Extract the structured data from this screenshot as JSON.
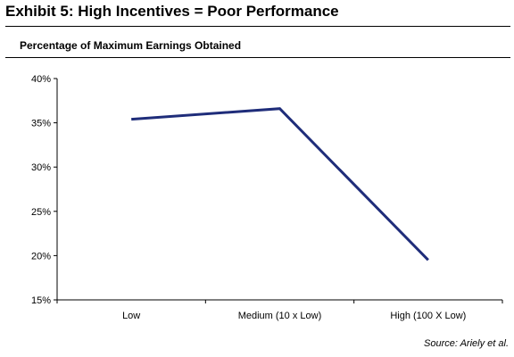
{
  "header": {
    "title": "Exhibit 5: High Incentives = Poor Performance"
  },
  "source": "Source: Ariely et al.",
  "colors": {
    "line": "#1f2d7a",
    "axis": "#000000"
  },
  "chart_data": {
    "type": "line",
    "title": "Percentage of Maximum Earnings Obtained",
    "xlabel": "",
    "ylabel": "",
    "categories": [
      "Low",
      "Medium (10 x Low)",
      "High (100 X Low)"
    ],
    "series": [
      {
        "values": [
          35.4,
          36.6,
          19.5
        ]
      }
    ],
    "ylim": [
      15,
      40
    ],
    "yticks": [
      15,
      20,
      25,
      30,
      35,
      40
    ],
    "ytick_labels": [
      "15%",
      "20%",
      "25%",
      "30%",
      "35%",
      "40%"
    ],
    "grid": false,
    "legend": "none"
  }
}
